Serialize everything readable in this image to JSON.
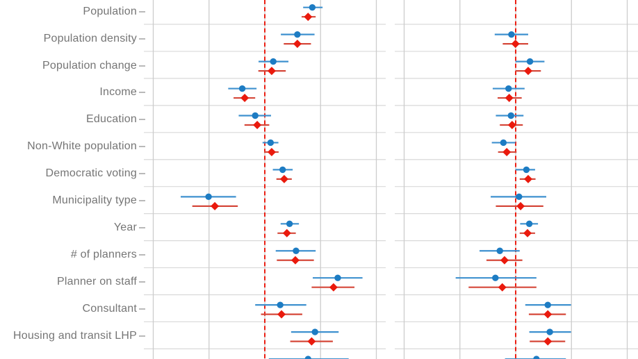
{
  "figure": {
    "background": "#ffffff",
    "note_visible_text_only": "axis tick labels and plot titles are cropped out of view; only row labels are visible"
  },
  "colors": {
    "blue_marker": "#1d7cc3",
    "blue_line": "#3e91cf",
    "red_marker": "#ea1a0d",
    "red_line": "#d5483a",
    "reference_line": "#ec2014",
    "h_gridline": "#d9d9d9",
    "v_gridline": "#cccccc",
    "label_text": "#757575",
    "tick_mark": "#b9b9b9"
  },
  "chart_data": {
    "type": "dot-whisker coefficient plot (forest plot) with two facet panels",
    "facets": [
      "left",
      "right"
    ],
    "reference_line_x": 0,
    "x_gridlines": [
      -0.5,
      -0.25,
      0,
      0.25,
      0.5
    ],
    "x_axis_tick_labels_visible": false,
    "value_format": "[estimate, ci_low, ci_high] in axis units (gridline spacing assumed 0.25)",
    "series": [
      {
        "key": "blue",
        "marker": "circle",
        "color": "#1d7cc3"
      },
      {
        "key": "red",
        "marker": "diamond",
        "color": "#ea1a0d"
      }
    ],
    "rows": [
      {
        "label": "Population",
        "left": {
          "blue": [
            0.213,
            0.172,
            0.259
          ],
          "red": [
            0.194,
            0.165,
            0.228
          ]
        },
        "right": null
      },
      {
        "label": "Population density",
        "left": {
          "blue": [
            0.146,
            0.072,
            0.223
          ],
          "red": [
            0.146,
            0.085,
            0.207
          ]
        },
        "right": {
          "blue": [
            -0.019,
            -0.094,
            0.056
          ],
          "red": [
            -0.001,
            -0.058,
            0.056
          ]
        }
      },
      {
        "label": "Population change",
        "left": {
          "blue": [
            0.038,
            -0.028,
            0.106
          ],
          "red": [
            0.031,
            -0.029,
            0.094
          ]
        },
        "right": {
          "blue": [
            0.064,
            -0.001,
            0.129
          ],
          "red": [
            0.056,
            -0.001,
            0.113
          ]
        }
      },
      {
        "label": "Income",
        "left": {
          "blue": [
            -0.101,
            -0.164,
            -0.037
          ],
          "red": [
            -0.09,
            -0.14,
            -0.043
          ]
        },
        "right": {
          "blue": [
            -0.032,
            -0.103,
            0.04
          ],
          "red": [
            -0.029,
            -0.081,
            0.027
          ]
        }
      },
      {
        "label": "Education",
        "left": {
          "blue": [
            -0.043,
            -0.117,
            0.028
          ],
          "red": [
            -0.034,
            -0.091,
            0.02
          ]
        },
        "right": {
          "blue": [
            -0.021,
            -0.089,
            0.035
          ],
          "red": [
            -0.016,
            -0.071,
            0.032
          ]
        }
      },
      {
        "label": "Non-White population",
        "left": {
          "blue": [
            0.026,
            -0.01,
            0.061
          ],
          "red": [
            0.031,
            -0.003,
            0.062
          ]
        },
        "right": {
          "blue": [
            -0.055,
            -0.107,
            -0.001
          ],
          "red": [
            -0.04,
            -0.079,
            0.004
          ]
        }
      },
      {
        "label": "Democratic voting",
        "left": {
          "blue": [
            0.08,
            0.036,
            0.125
          ],
          "red": [
            0.087,
            0.052,
            0.121
          ]
        },
        "right": {
          "blue": [
            0.048,
            -0.001,
            0.087
          ],
          "red": [
            0.056,
            0.018,
            0.089
          ]
        }
      },
      {
        "label": "Municipality type",
        "left": {
          "blue": [
            -0.252,
            -0.377,
            -0.129
          ],
          "red": [
            -0.224,
            -0.325,
            -0.121
          ]
        },
        "right": {
          "blue": [
            0.015,
            -0.112,
            0.137
          ],
          "red": [
            0.022,
            -0.089,
            0.124
          ]
        }
      },
      {
        "label": "Year",
        "left": {
          "blue": [
            0.111,
            0.071,
            0.153
          ],
          "red": [
            0.099,
            0.057,
            0.139
          ]
        },
        "right": {
          "blue": [
            0.061,
            0.02,
            0.1
          ],
          "red": [
            0.053,
            0.018,
            0.087
          ]
        }
      },
      {
        "label": "# of planners",
        "left": {
          "blue": [
            0.14,
            0.049,
            0.228
          ],
          "red": [
            0.137,
            0.054,
            0.22
          ]
        },
        "right": {
          "blue": [
            -0.071,
            -0.162,
            0.018
          ],
          "red": [
            -0.05,
            -0.131,
            0.03
          ]
        }
      },
      {
        "label": "Planner on staff",
        "left": {
          "blue": [
            0.327,
            0.215,
            0.438
          ],
          "red": [
            0.308,
            0.21,
            0.402
          ]
        },
        "right": {
          "blue": [
            -0.091,
            -0.269,
            0.093
          ],
          "red": [
            -0.06,
            -0.211,
            0.093
          ]
        }
      },
      {
        "label": "Consultant",
        "left": {
          "blue": [
            0.069,
            -0.043,
            0.186
          ],
          "red": [
            0.075,
            -0.017,
            0.168
          ]
        },
        "right": {
          "blue": [
            0.144,
            0.043,
            0.248
          ],
          "red": [
            0.144,
            0.059,
            0.225
          ]
        }
      },
      {
        "label": "Housing and transit LHP",
        "left": {
          "blue": [
            0.225,
            0.118,
            0.331
          ],
          "red": [
            0.21,
            0.114,
            0.305
          ]
        },
        "right": {
          "blue": [
            0.153,
            0.061,
            0.248
          ],
          "red": [
            0.144,
            0.063,
            0.222
          ]
        }
      },
      {
        "label": "",
        "cropped": true,
        "left": {
          "blue": [
            0.194,
            0.018,
            0.376
          ],
          "red": null
        },
        "right": {
          "blue": [
            0.093,
            -0.048,
            0.225
          ],
          "red": null
        }
      }
    ]
  }
}
